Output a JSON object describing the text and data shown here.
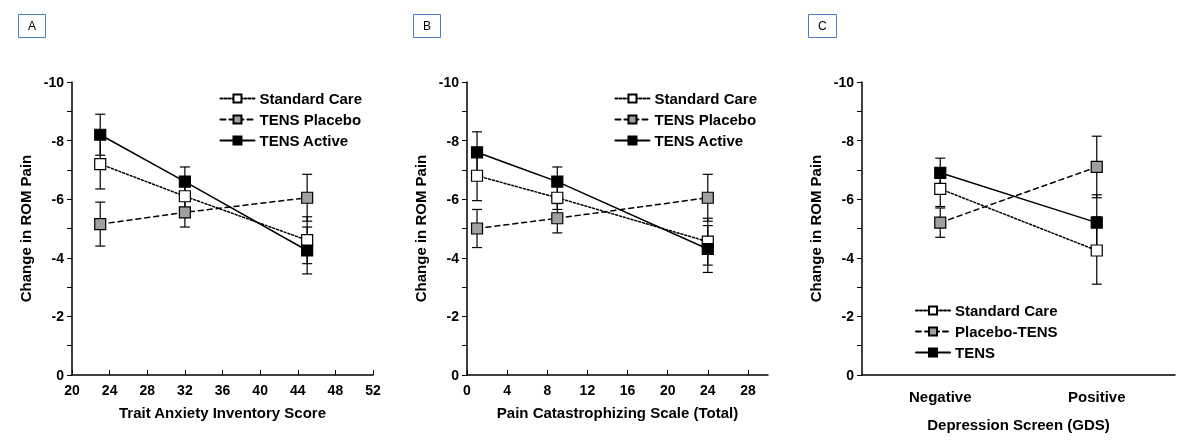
{
  "chart_data": [
    {
      "type": "line",
      "title": "A",
      "xlabel": "Trait Anxiety Inventory Score",
      "ylabel": "Change in ROM Pain",
      "x": [
        23,
        32,
        45
      ],
      "xlim": [
        20,
        52
      ],
      "xticks": [
        20,
        24,
        28,
        32,
        36,
        40,
        44,
        48,
        52
      ],
      "ylim": [
        0,
        -10
      ],
      "yticks": [
        0,
        {
          "value": -1,
          "label": null
        },
        -2,
        {
          "value": -3,
          "label": null
        },
        -4,
        {
          "value": -5,
          "label": null
        },
        -6,
        {
          "value": -7,
          "label": null
        },
        -8,
        {
          "value": -9,
          "label": null
        },
        -10
      ],
      "legend": "top right",
      "marker": "square",
      "grid": false,
      "series": [
        {
          "name": "Standard Care",
          "color": "#ffffff",
          "line_style": "dotted",
          "values": [
            -7.2,
            -6.1,
            -4.6
          ],
          "errors": [
            0.85,
            0.4,
            0.8
          ]
        },
        {
          "name": "TENS Placebo",
          "color": "#a0a0a0",
          "line_style": "dashed",
          "values": [
            -5.15,
            -5.55,
            -6.05
          ],
          "errors": [
            0.75,
            0.5,
            0.8
          ]
        },
        {
          "name": "TENS Active",
          "color": "#000000",
          "line_style": "solid",
          "values": [
            -8.2,
            -6.6,
            -4.25
          ],
          "errors": [
            0.7,
            0.5,
            0.8
          ]
        }
      ]
    },
    {
      "type": "line",
      "title": "B",
      "xlabel": "Pain Catastrophizing Scale (Total)",
      "ylabel": "Change in ROM Pain",
      "x": [
        1,
        9,
        24
      ],
      "xlim": [
        0,
        30
      ],
      "xticks": [
        0,
        4,
        8,
        12,
        16,
        20,
        24,
        28
      ],
      "ylim": [
        0,
        -10
      ],
      "yticks": [
        0,
        {
          "value": -1,
          "label": null
        },
        -2,
        {
          "value": -3,
          "label": null
        },
        -4,
        {
          "value": -5,
          "label": null
        },
        -6,
        {
          "value": -7,
          "label": null
        },
        -8,
        {
          "value": -9,
          "label": null
        },
        -10
      ],
      "legend": "top right",
      "marker": "square",
      "grid": false,
      "series": [
        {
          "name": "Standard Care",
          "color": "#ffffff",
          "line_style": "dotted",
          "values": [
            -6.8,
            -6.05,
            -4.55
          ],
          "errors": [
            0.85,
            0.4,
            0.8
          ]
        },
        {
          "name": "TENS Placebo",
          "color": "#a0a0a0",
          "line_style": "dashed",
          "values": [
            -5.0,
            -5.35,
            -6.05
          ],
          "errors": [
            0.65,
            0.5,
            0.8
          ]
        },
        {
          "name": "TENS Active",
          "color": "#000000",
          "line_style": "solid",
          "values": [
            -7.6,
            -6.6,
            -4.3
          ],
          "errors": [
            0.7,
            0.5,
            0.8
          ]
        }
      ]
    },
    {
      "type": "line",
      "title": "C",
      "xlabel": "Depression Screen (GDS)",
      "ylabel": "Change in ROM Pain",
      "categories": [
        "Negative",
        "Positive"
      ],
      "ylim": [
        0,
        -10
      ],
      "yticks": [
        0,
        {
          "value": -1,
          "label": null
        },
        -2,
        {
          "value": -3,
          "label": null
        },
        -4,
        {
          "value": -5,
          "label": null
        },
        -6,
        {
          "value": -7,
          "label": null
        },
        -8,
        {
          "value": -9,
          "label": null
        },
        -10
      ],
      "legend": "bottom",
      "marker": "square",
      "grid": false,
      "series": [
        {
          "name": "Standard Care",
          "color": "#ffffff",
          "line_style": "dotted",
          "values": [
            -6.35,
            -4.25
          ],
          "errors": [
            0.6,
            1.15
          ]
        },
        {
          "name": "Placebo-TENS",
          "color": "#a0a0a0",
          "line_style": "dashed",
          "values": [
            -5.2,
            -7.1
          ],
          "errors": [
            0.5,
            1.05
          ]
        },
        {
          "name": "TENS",
          "color": "#000000",
          "line_style": "solid",
          "values": [
            -6.9,
            -5.2
          ],
          "errors": [
            0.5,
            0.95
          ]
        }
      ]
    }
  ]
}
